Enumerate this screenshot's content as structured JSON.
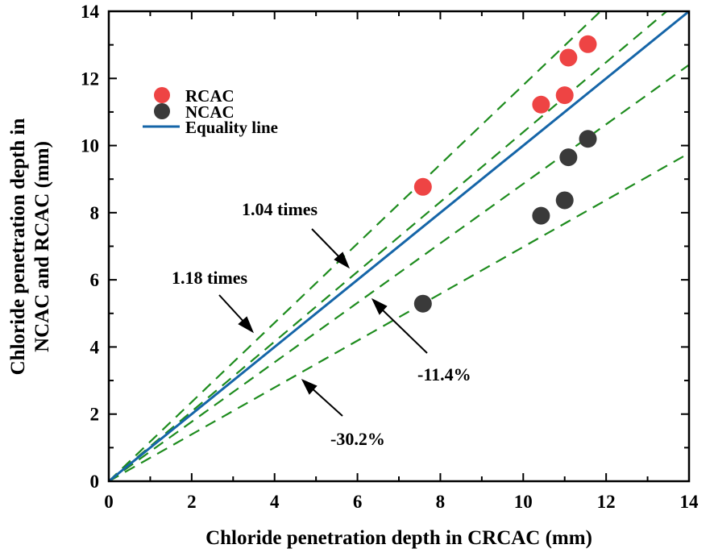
{
  "chart_data": {
    "type": "scatter",
    "xlabel": "Chloride penetration depth in CRCAC (mm)",
    "ylabel": [
      "Chloride penetration depth in",
      "NCAC and RCAC (mm)"
    ],
    "xlim": [
      0,
      14
    ],
    "ylim": [
      0,
      14
    ],
    "xticks": [
      0,
      2,
      4,
      6,
      8,
      10,
      12,
      14
    ],
    "yticks": [
      0,
      2,
      4,
      6,
      8,
      10,
      12,
      14
    ],
    "grid": false,
    "legend_placement": "top-left",
    "series": [
      {
        "name": "NCAC",
        "color": "#3a3a3a",
        "x": [
          7.58,
          10.43,
          11.0,
          11.09,
          11.56
        ],
        "y": [
          5.29,
          7.91,
          8.37,
          9.65,
          10.2
        ]
      },
      {
        "name": "RCAC",
        "color": "#ee4444",
        "x": [
          7.58,
          10.43,
          11.0,
          11.09,
          11.56
        ],
        "y": [
          8.77,
          11.22,
          11.5,
          12.62,
          13.02
        ]
      }
    ],
    "equality_line": {
      "name": "Equality line",
      "color": "#1565a8",
      "slope": 1.0
    },
    "reference_lines": [
      {
        "label": "1.18 times",
        "slope": 1.18,
        "color": "#1e8c1e"
      },
      {
        "label": "1.04 times",
        "slope": 1.04,
        "color": "#1e8c1e"
      },
      {
        "label": "-11.4%",
        "slope": 0.886,
        "color": "#1e8c1e"
      },
      {
        "label": "-30.2%",
        "slope": 0.698,
        "color": "#1e8c1e"
      }
    ]
  }
}
